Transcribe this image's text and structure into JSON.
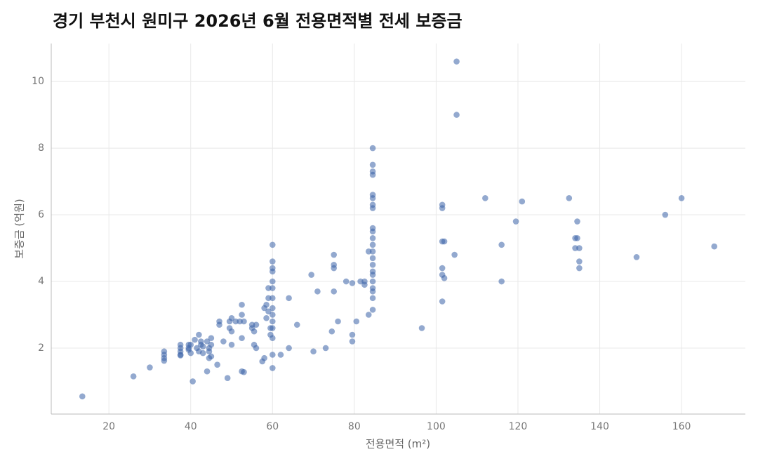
{
  "chart_data": {
    "type": "scatter",
    "title": "경기 부천시 원미구 2026년 6월 전용면적별 전세 보증금",
    "x_label": "전용면적 (m²)",
    "y_label": "보증금 (억원)",
    "color": "#3a62a7",
    "grid": true,
    "xlim": [
      5.9,
      175.6
    ],
    "xticks": [
      20,
      40,
      60,
      80,
      100,
      120,
      140,
      160
    ],
    "ylim": [
      0.02,
      11.14
    ],
    "yticks": [
      2,
      4,
      6,
      8,
      10
    ],
    "x": [
      13.5,
      26,
      30,
      33.5,
      33.5,
      33.5,
      33.5,
      37.5,
      37.5,
      37.5,
      37.5,
      37.5,
      39.5,
      39.5,
      39.5,
      40,
      40,
      40.5,
      41,
      41.5,
      42,
      42,
      42.5,
      42.5,
      43,
      43,
      44,
      44,
      44.5,
      44.5,
      44.5,
      45,
      45,
      45,
      46.5,
      47,
      47,
      48,
      49,
      49.5,
      49.5,
      50,
      50,
      50,
      51,
      52,
      52.5,
      52.5,
      52.5,
      52.5,
      53,
      53,
      55,
      55,
      55.5,
      55.5,
      56,
      56,
      57.5,
      58,
      58,
      58.5,
      58.5,
      59,
      59,
      59,
      59.5,
      59.5,
      60,
      60,
      60,
      60,
      60,
      60,
      60,
      60,
      60,
      60,
      60,
      60,
      60,
      60,
      62,
      64,
      64,
      66,
      69.5,
      70,
      71,
      73,
      74.5,
      75,
      75,
      75,
      75,
      76,
      78,
      79.5,
      79.5,
      79.5,
      80.5,
      81.5,
      82.5,
      82.5,
      83.5,
      83.5,
      84.5,
      84.5,
      84.5,
      84.5,
      84.5,
      84.5,
      84.5,
      84.5,
      84.5,
      84.5,
      84.5,
      84.5,
      84.5,
      84.5,
      84.5,
      84.5,
      84.5,
      84.5,
      84.5,
      84.5,
      84.5,
      84.5,
      96.5,
      101.5,
      101.5,
      101.5,
      101.5,
      101.5,
      101.5,
      102,
      102,
      104.5,
      105,
      105,
      112,
      116,
      116,
      119.5,
      121,
      132.5,
      134,
      134,
      134.5,
      134.5,
      135,
      135,
      135,
      149,
      156,
      160,
      168
    ],
    "values": [
      0.55,
      1.15,
      1.42,
      1.9,
      1.8,
      1.7,
      1.62,
      2.1,
      2.0,
      1.9,
      1.8,
      1.78,
      2.1,
      2.0,
      1.95,
      1.85,
      2.1,
      1.0,
      2.25,
      2.0,
      2.4,
      1.9,
      2.2,
      2.1,
      2.05,
      1.85,
      1.3,
      2.2,
      2.0,
      1.9,
      1.7,
      2.3,
      2.1,
      1.75,
      1.5,
      2.8,
      2.7,
      2.2,
      1.1,
      2.8,
      2.6,
      2.5,
      2.1,
      2.9,
      2.8,
      2.8,
      3.3,
      3.0,
      2.3,
      1.3,
      2.8,
      1.28,
      2.7,
      2.6,
      2.5,
      2.1,
      2.0,
      2.7,
      1.6,
      1.7,
      3.2,
      3.3,
      2.9,
      3.8,
      3.5,
      3.1,
      2.6,
      2.4,
      5.1,
      4.6,
      4.4,
      4.3,
      4.0,
      3.8,
      3.5,
      3.2,
      3.0,
      2.8,
      2.6,
      2.3,
      1.8,
      1.4,
      1.8,
      3.5,
      2.0,
      2.7,
      4.2,
      1.9,
      3.7,
      2.0,
      2.5,
      4.8,
      4.5,
      4.4,
      3.7,
      2.8,
      4.0,
      3.95,
      2.4,
      2.2,
      2.8,
      4.0,
      4.0,
      3.9,
      4.9,
      3.0,
      8.0,
      7.5,
      7.3,
      7.2,
      6.6,
      6.5,
      6.3,
      6.2,
      5.6,
      5.5,
      5.3,
      5.1,
      4.9,
      4.7,
      4.5,
      4.3,
      4.2,
      4.0,
      3.8,
      3.7,
      3.5,
      3.15,
      2.6,
      6.3,
      6.2,
      5.2,
      4.4,
      4.2,
      3.4,
      5.2,
      4.1,
      4.8,
      10.6,
      9.0,
      6.5,
      5.1,
      4.0,
      5.8,
      6.4,
      6.5,
      5.3,
      5.0,
      5.8,
      5.3,
      5.0,
      4.6,
      4.4,
      4.73,
      6.0,
      6.5,
      5.05
    ]
  }
}
